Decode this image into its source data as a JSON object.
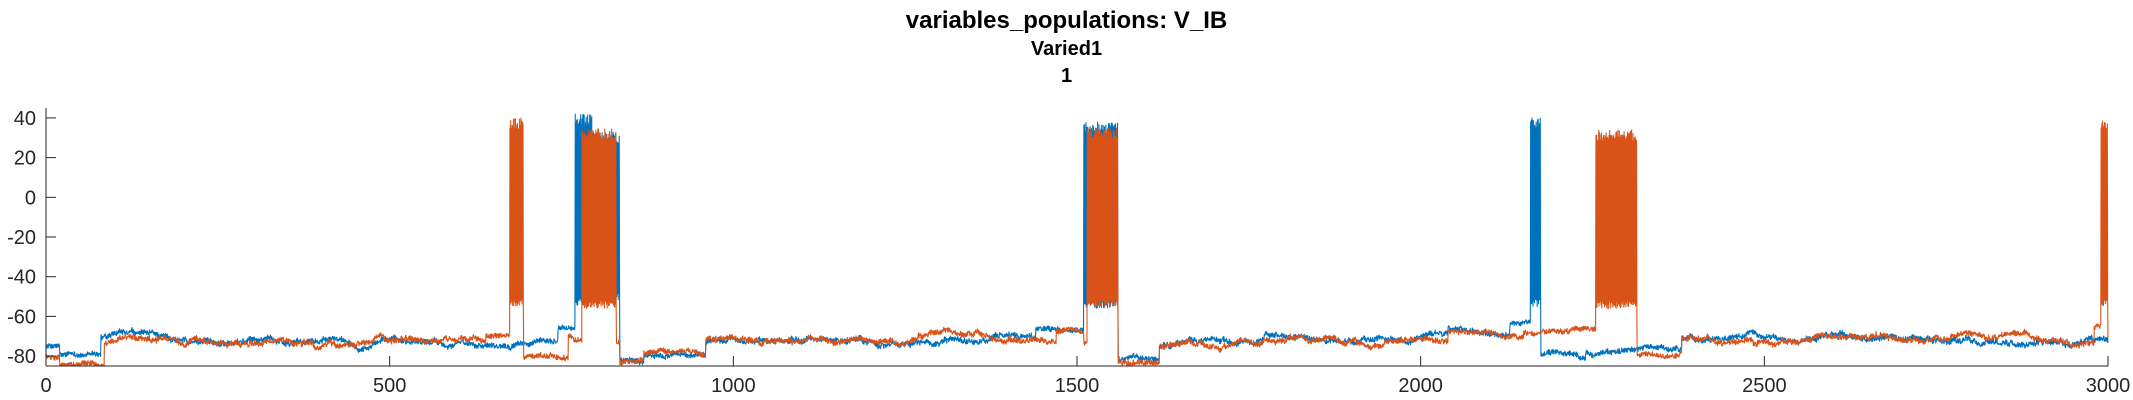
{
  "titles": {
    "main": "variables_populations: V_IB",
    "sub1": "Varied1",
    "sub2": "1"
  },
  "chart_data": {
    "type": "line",
    "title": "variables_populations: V_IB",
    "subtitle": [
      "Varied1",
      "1"
    ],
    "xlabel": "",
    "ylabel": "",
    "xlim": [
      0,
      3000
    ],
    "ylim": [
      -85,
      45
    ],
    "xticks": [
      0,
      500,
      1000,
      1500,
      2000,
      2500,
      3000
    ],
    "yticks": [
      -80,
      -60,
      -40,
      -20,
      0,
      20,
      40
    ],
    "grid": false,
    "legend": "none",
    "series": [
      {
        "color": "#0072BD",
        "baseline": -72,
        "noise": 2.5,
        "segments": [
          {
            "start": 0,
            "end": 20,
            "level": -75
          },
          {
            "start": 20,
            "end": 80,
            "level": -80
          },
          {
            "start": 595,
            "end": 745,
            "level": -73
          },
          {
            "start": 745,
            "end": 770,
            "level": -66
          },
          {
            "start": 795,
            "end": 835,
            "level": -64
          },
          {
            "start": 835,
            "end": 870,
            "level": -82
          },
          {
            "start": 870,
            "end": 960,
            "level": -79
          },
          {
            "start": 1440,
            "end": 1510,
            "level": -67
          },
          {
            "start": 1560,
            "end": 1620,
            "level": -80
          },
          {
            "start": 2040,
            "end": 2130,
            "level": -68
          },
          {
            "start": 2130,
            "end": 2160,
            "level": -63
          },
          {
            "start": 2175,
            "end": 2240,
            "level": -80
          },
          {
            "start": 2240,
            "end": 2380,
            "level": -77
          }
        ],
        "bursts": [
          {
            "start": 770,
            "end": 795,
            "peak": 42,
            "trough": -55
          },
          {
            "start": 795,
            "end": 835,
            "peak": 33,
            "trough": -52
          },
          {
            "start": 1510,
            "end": 1560,
            "peak": 38,
            "trough": -56
          },
          {
            "start": 2160,
            "end": 2175,
            "peak": 40,
            "trough": -55
          }
        ]
      },
      {
        "color": "#D95319",
        "baseline": -72,
        "noise": 2.5,
        "segments": [
          {
            "start": 0,
            "end": 20,
            "level": -80
          },
          {
            "start": 20,
            "end": 85,
            "level": -84
          },
          {
            "start": 640,
            "end": 675,
            "level": -69
          },
          {
            "start": 695,
            "end": 760,
            "level": -82
          },
          {
            "start": 835,
            "end": 870,
            "level": -83
          },
          {
            "start": 870,
            "end": 960,
            "level": -79
          },
          {
            "start": 1470,
            "end": 1510,
            "level": -67
          },
          {
            "start": 1560,
            "end": 1620,
            "level": -82
          },
          {
            "start": 2040,
            "end": 2150,
            "level": -68
          },
          {
            "start": 2150,
            "end": 2255,
            "level": -66
          },
          {
            "start": 2315,
            "end": 2380,
            "level": -80
          },
          {
            "start": 2980,
            "end": 2990,
            "level": -65
          }
        ],
        "bursts": [
          {
            "start": 675,
            "end": 695,
            "peak": 40,
            "trough": -55
          },
          {
            "start": 780,
            "end": 830,
            "peak": 35,
            "trough": -56
          },
          {
            "start": 1515,
            "end": 1560,
            "peak": 35,
            "trough": -55
          },
          {
            "start": 2255,
            "end": 2315,
            "peak": 34,
            "trough": -56
          },
          {
            "start": 2990,
            "end": 3000,
            "peak": 40,
            "trough": -55
          }
        ]
      }
    ]
  }
}
